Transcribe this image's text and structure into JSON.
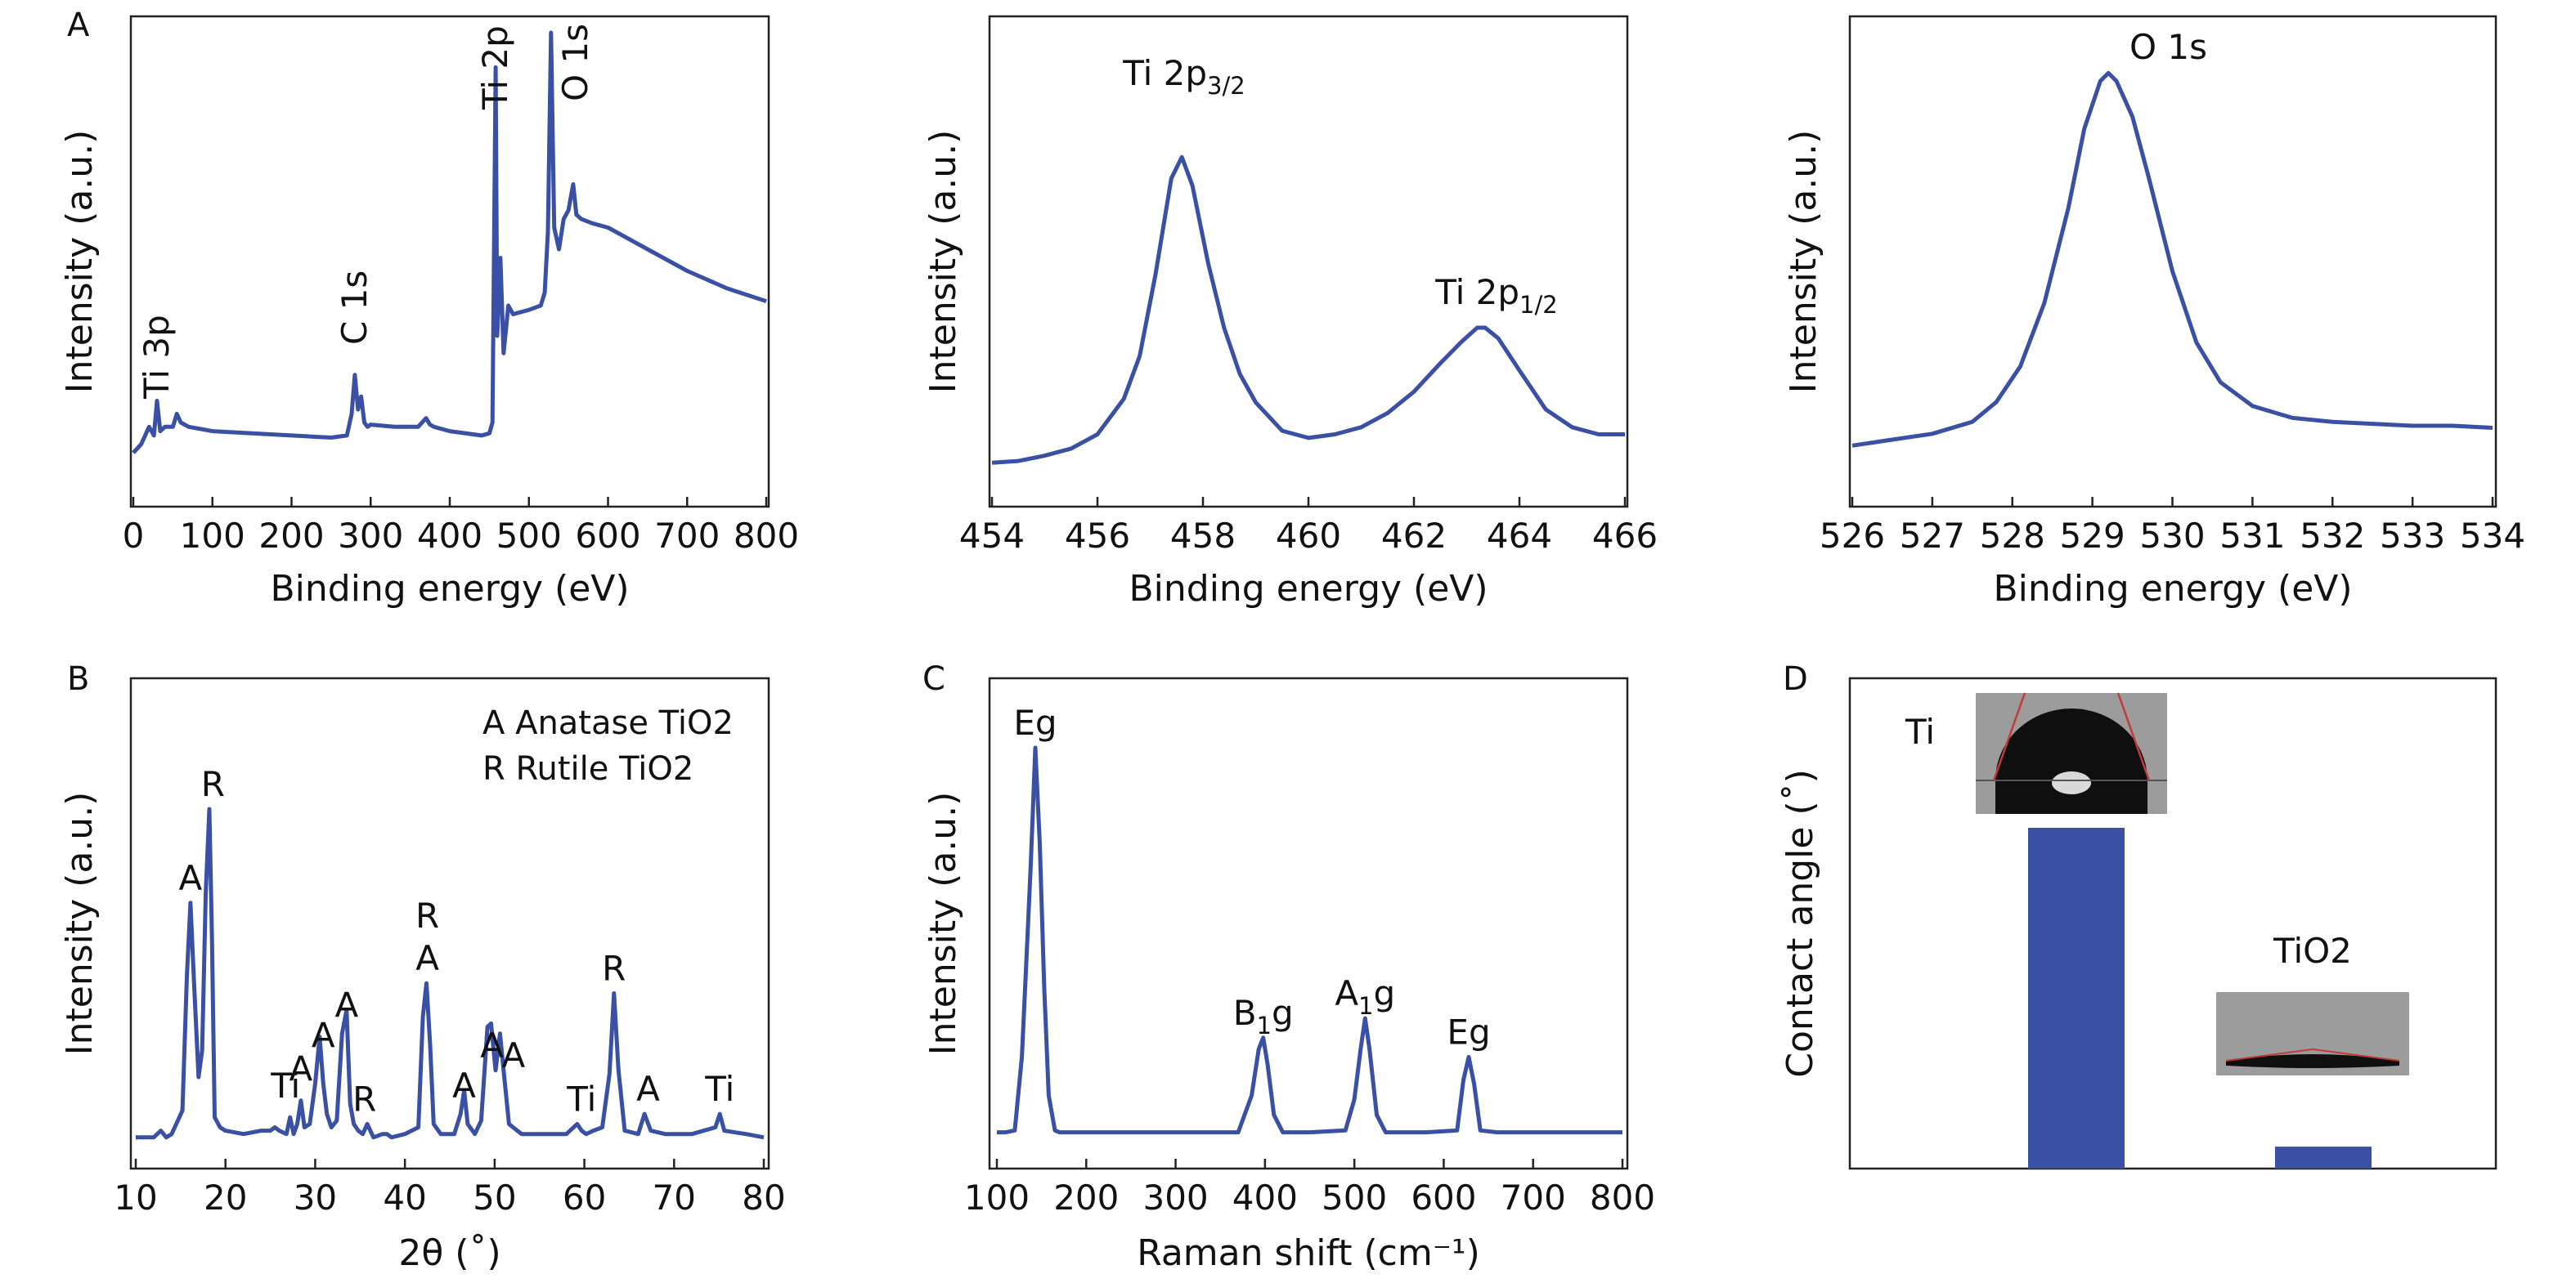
{
  "figure": {
    "line_color": "#3a50a4",
    "bar_color": "#3a50a4",
    "photo_background": "#9c9c9c",
    "photo_droplet": "#0f0f0f",
    "contact_line_color": "#c23a3a"
  },
  "chart_data": [
    {
      "id": "xps-survey",
      "panel": "A",
      "type": "line",
      "xlabel": "Binding energy (eV)",
      "ylabel": "Intensity (a.u.)",
      "xlim": [
        0,
        800
      ],
      "ylim": [
        0,
        100
      ],
      "xticks": [
        0,
        100,
        200,
        300,
        400,
        500,
        600,
        700,
        800
      ],
      "y_ticks_labeled": false,
      "grid": false,
      "series": [
        {
          "x": [
            0,
            10,
            20,
            26,
            30,
            34,
            40,
            50,
            55,
            60,
            70,
            100,
            150,
            200,
            250,
            270,
            276,
            280,
            284,
            288,
            292,
            296,
            300,
            330,
            360,
            370,
            375,
            380,
            400,
            440,
            450,
            454,
            458,
            460,
            464,
            468,
            474,
            480,
            500,
            515,
            520,
            524,
            528,
            532,
            538,
            544,
            550,
            556,
            560,
            566,
            580,
            600,
            620,
            650,
            700,
            750,
            800
          ],
          "y": [
            3,
            5,
            9,
            7,
            15,
            8,
            9,
            9,
            12,
            10,
            9,
            8,
            7.5,
            7,
            6.5,
            7,
            12,
            21,
            13,
            16,
            10,
            9,
            9.5,
            9,
            9,
            11,
            9.5,
            9,
            8,
            7,
            7.5,
            10,
            92,
            30,
            48,
            26,
            37,
            35,
            36,
            37,
            40,
            54,
            100,
            55,
            50,
            57,
            59,
            65,
            58,
            57,
            56,
            55,
            53,
            50,
            45,
            41,
            38
          ]
        }
      ],
      "annotations": [
        {
          "text": "Ti 3p",
          "x": 30
        },
        {
          "text": "C 1s",
          "x": 284
        },
        {
          "text": "Ti 2p",
          "x": 458
        },
        {
          "text": "O 1s",
          "x": 530
        }
      ]
    },
    {
      "id": "xps-ti2p",
      "type": "line",
      "xlabel": "Binding energy (eV)",
      "ylabel": "Intensity (a.u.)",
      "xlim": [
        454,
        466
      ],
      "ylim": [
        0,
        100
      ],
      "xticks": [
        454,
        456,
        458,
        460,
        462,
        464,
        466
      ],
      "y_ticks_labeled": false,
      "grid": false,
      "series": [
        {
          "x": [
            454,
            454.5,
            455,
            455.5,
            456,
            456.5,
            456.8,
            457.1,
            457.4,
            457.6,
            457.8,
            458.1,
            458.4,
            458.7,
            459,
            459.5,
            460,
            460.5,
            461,
            461.5,
            462,
            462.5,
            462.9,
            463.2,
            463.35,
            463.6,
            464,
            464.5,
            465,
            465.5,
            466
          ],
          "y": [
            2,
            2.5,
            4,
            6,
            10,
            20,
            32,
            55,
            82,
            88,
            80,
            58,
            40,
            27,
            19,
            11,
            9,
            10,
            12,
            16,
            22,
            30,
            36,
            40,
            40,
            37,
            28,
            17,
            12,
            10,
            10
          ]
        }
      ],
      "annotations": [
        {
          "text": "Ti 2p",
          "sub": "3/2",
          "x": 457.6
        },
        {
          "text": "Ti 2p",
          "sub": "1/2",
          "x": 463.3
        }
      ]
    },
    {
      "id": "xps-o1s",
      "type": "line",
      "xlabel": "Binding energy (eV)",
      "ylabel": "Intensity (a.u.)",
      "xlim": [
        526,
        534
      ],
      "ylim": [
        0,
        100
      ],
      "xticks": [
        526,
        527,
        528,
        529,
        530,
        531,
        532,
        533,
        534
      ],
      "y_ticks_labeled": false,
      "grid": false,
      "series": [
        {
          "x": [
            526,
            526.5,
            527,
            527.5,
            527.8,
            528.1,
            528.4,
            528.7,
            528.9,
            529.1,
            529.2,
            529.3,
            529.5,
            529.7,
            530,
            530.3,
            530.6,
            531,
            531.5,
            532,
            532.5,
            533,
            533.5,
            534
          ],
          "y": [
            2,
            3.5,
            5,
            8,
            13,
            22,
            38,
            62,
            82,
            94,
            96,
            94,
            85,
            70,
            46,
            28,
            18,
            12,
            9,
            8,
            7.5,
            7,
            7,
            6.5
          ]
        }
      ],
      "annotations": [
        {
          "text": "O 1s",
          "x": 529.2
        }
      ]
    },
    {
      "id": "xrd",
      "panel": "B",
      "type": "line",
      "xlabel": "2θ (˚)",
      "ylabel": "Intensity (a.u.)",
      "xlim": [
        10,
        80
      ],
      "ylim": [
        0,
        100
      ],
      "xticks": [
        10,
        20,
        30,
        40,
        50,
        60,
        70,
        80
      ],
      "y_ticks_labeled": false,
      "grid": false,
      "legend": [
        "A Anatase TiO2",
        "R Rutile TiO2"
      ],
      "legend_position": "top-right",
      "series": [
        {
          "x": [
            10,
            12,
            12.8,
            13.4,
            14,
            15.2,
            15.7,
            16.1,
            16.5,
            17,
            17.4,
            17.8,
            18.2,
            18.5,
            18.8,
            19.4,
            20,
            22,
            24,
            25,
            25.5,
            26,
            26.8,
            27.2,
            27.6,
            28,
            28.4,
            28.8,
            29.4,
            30,
            30.5,
            30.9,
            31.3,
            31.8,
            32.4,
            33,
            33.5,
            33.9,
            34.3,
            34.8,
            35.3,
            35.8,
            36.5,
            37.5,
            38,
            38.5,
            40,
            41.5,
            42,
            42.4,
            42.8,
            43.2,
            44,
            45.5,
            46.2,
            46.6,
            47,
            47.8,
            48.5,
            49.2,
            49.6,
            50.1,
            50.6,
            51,
            51.6,
            53,
            56,
            58,
            59.2,
            59.7,
            60.2,
            61,
            62,
            62.8,
            63.3,
            63.8,
            64.5,
            66,
            66.7,
            67.4,
            69,
            72,
            74.6,
            75.1,
            75.6,
            78,
            80
          ],
          "y": [
            2,
            2,
            4,
            2,
            3,
            10,
            50,
            72,
            48,
            20,
            28,
            75,
            100,
            60,
            8,
            5,
            4,
            3,
            4,
            4,
            5,
            4,
            3,
            8,
            3,
            6,
            13,
            5,
            6,
            18,
            32,
            18,
            9,
            5,
            7,
            33,
            40,
            12,
            6,
            4,
            3,
            6,
            2,
            3,
            3,
            2,
            3,
            5,
            38,
            48,
            30,
            6,
            3,
            3,
            9,
            16,
            6,
            3,
            7,
            35,
            36,
            22,
            33,
            22,
            6,
            3,
            3,
            3,
            6,
            4,
            3,
            4,
            5,
            21,
            45,
            22,
            4,
            3,
            9,
            4,
            3,
            3,
            5,
            9,
            4,
            3,
            2
          ]
        }
      ],
      "annotations": [
        {
          "text": "A",
          "x": 16.1,
          "y": 72
        },
        {
          "text": "R",
          "x": 18.6,
          "y": 100
        },
        {
          "text": "Ti",
          "x": 26.7,
          "y": 10
        },
        {
          "text": "A",
          "x": 28.4,
          "y": 15
        },
        {
          "text": "A",
          "x": 30.9,
          "y": 25
        },
        {
          "text": "A",
          "x": 33.5,
          "y": 34
        },
        {
          "text": "R",
          "x": 35.5,
          "y": 6
        },
        {
          "text": "R",
          "x": 42.5,
          "y": 48,
          "stack": 2
        },
        {
          "text": "A",
          "x": 42.5,
          "y": 48
        },
        {
          "text": "A",
          "x": 46.6,
          "y": 10
        },
        {
          "text": "A",
          "x": 49.7,
          "y": 22
        },
        {
          "text": "A",
          "x": 52.1,
          "y": 19
        },
        {
          "text": "Ti",
          "x": 59.7,
          "y": 6
        },
        {
          "text": "R",
          "x": 63.3,
          "y": 45
        },
        {
          "text": "A",
          "x": 67.1,
          "y": 9
        },
        {
          "text": "Ti",
          "x": 75.1,
          "y": 9
        }
      ]
    },
    {
      "id": "raman",
      "panel": "C",
      "type": "line",
      "xlabel": "Raman shift (cm⁻¹)",
      "ylabel": "Intensity (a.u.)",
      "xlim": [
        100,
        800
      ],
      "ylim": [
        0,
        100
      ],
      "xticks": [
        100,
        200,
        300,
        400,
        500,
        600,
        700,
        800
      ],
      "y_ticks_labeled": false,
      "grid": false,
      "series": [
        {
          "x": [
            100,
            110,
            120,
            128,
            133,
            138,
            143,
            148,
            153,
            158,
            165,
            170,
            200,
            300,
            370,
            385,
            393,
            398,
            403,
            410,
            420,
            450,
            490,
            500,
            507,
            512,
            517,
            525,
            535,
            580,
            615,
            622,
            628,
            634,
            641,
            660,
            700,
            800
          ],
          "y": [
            0.5,
            0.5,
            1,
            20,
            45,
            70,
            100,
            75,
            38,
            10,
            1,
            0.5,
            0.5,
            0.5,
            0.5,
            10,
            22,
            25,
            18,
            5,
            0.5,
            0.5,
            1,
            9,
            22,
            30,
            22,
            5,
            0.5,
            0.5,
            1,
            14,
            20,
            13,
            1,
            0.5,
            0.5,
            0.5
          ]
        }
      ],
      "annotations": [
        {
          "text": "Eg",
          "x": 143,
          "y": 100
        },
        {
          "text": "B",
          "sub": "1",
          "tail": "g",
          "x": 398,
          "y": 25
        },
        {
          "text": "A",
          "sub": "1",
          "tail": "g",
          "x": 512,
          "y": 30
        },
        {
          "text": "Eg",
          "x": 628,
          "y": 20
        }
      ]
    },
    {
      "id": "contact-angle",
      "panel": "D",
      "type": "bar",
      "ylabel": "Contact angle (˚)",
      "categories": [
        "Ti",
        "TiO2"
      ],
      "values": [
        62,
        4
      ],
      "ylim": [
        0,
        100
      ],
      "y_ticks_labeled": false,
      "grid": false
    }
  ]
}
